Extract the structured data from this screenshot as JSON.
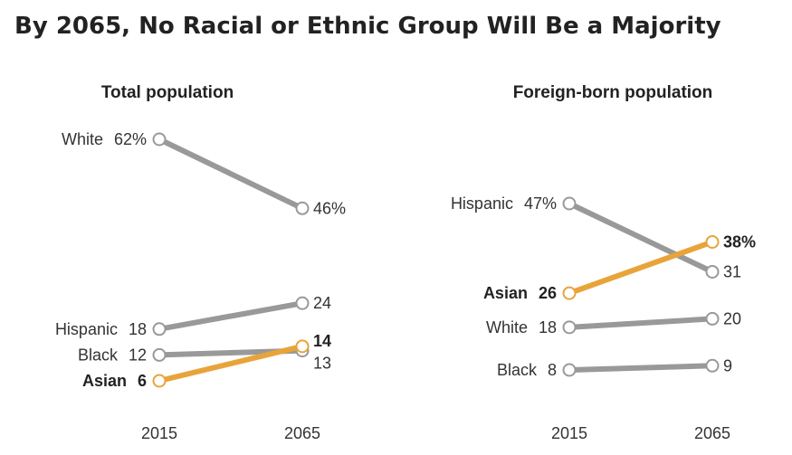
{
  "title": "By 2065, No Racial or Ethnic Group Will Be a Majority",
  "colors": {
    "gray": "#999999",
    "highlight": "#e8a43a",
    "text": "#333333"
  },
  "chart_data": [
    {
      "type": "line",
      "subtitle": "Total population",
      "x": [
        "2015",
        "2065"
      ],
      "series": [
        {
          "name": "White",
          "values": [
            62,
            46
          ],
          "labels": [
            "62%",
            "46%"
          ],
          "color": "#999999",
          "bold": false
        },
        {
          "name": "Hispanic",
          "values": [
            18,
            24
          ],
          "labels": [
            "18",
            "24"
          ],
          "color": "#999999",
          "bold": false
        },
        {
          "name": "Black",
          "values": [
            12,
            13
          ],
          "labels": [
            "12",
            "13"
          ],
          "color": "#999999",
          "bold": false
        },
        {
          "name": "Asian",
          "values": [
            6,
            14
          ],
          "labels": [
            "6",
            "14"
          ],
          "color": "#e8a43a",
          "bold": true
        }
      ]
    },
    {
      "type": "line",
      "subtitle": "Foreign-born population",
      "x": [
        "2015",
        "2065"
      ],
      "series": [
        {
          "name": "Hispanic",
          "values": [
            47,
            31
          ],
          "labels": [
            "47%",
            "31"
          ],
          "color": "#999999",
          "bold": false
        },
        {
          "name": "Asian",
          "values": [
            26,
            38
          ],
          "labels": [
            "26",
            "38%"
          ],
          "color": "#e8a43a",
          "bold": true
        },
        {
          "name": "White",
          "values": [
            18,
            20
          ],
          "labels": [
            "18",
            "20"
          ],
          "color": "#999999",
          "bold": false
        },
        {
          "name": "Black",
          "values": [
            8,
            9
          ],
          "labels": [
            "8",
            "9"
          ],
          "color": "#999999",
          "bold": false
        }
      ]
    }
  ]
}
